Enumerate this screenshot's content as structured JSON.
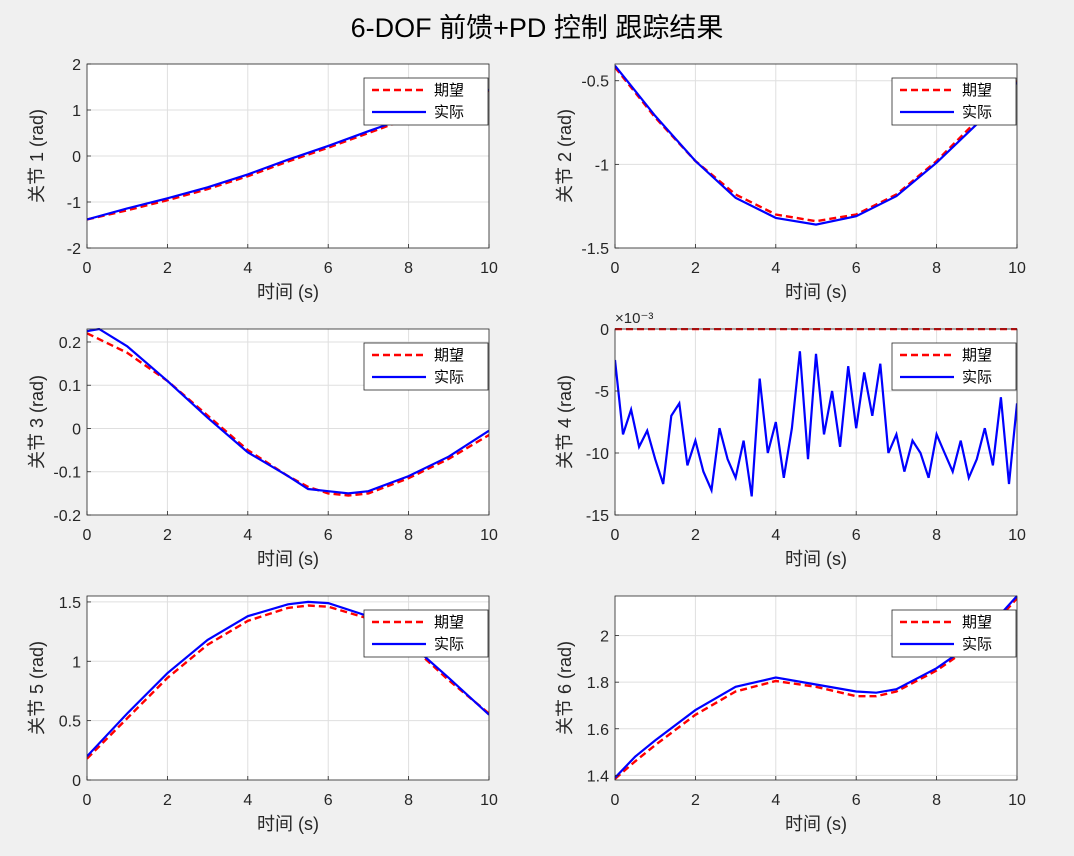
{
  "figure_title": "6-DOF 前馈+PD 控制 跟踪结果",
  "colors": {
    "desired": "#ff0000",
    "actual": "#0000ff",
    "axes_bg": "#ffffff",
    "figure_bg": "#f0f0f0",
    "grid": "#dfdfdf"
  },
  "chart_data": [
    {
      "type": "line",
      "ylabel": "关节 1 (rad)",
      "xlabel": "时间 (s)",
      "xlim": [
        0,
        10
      ],
      "ylim": [
        -2,
        2
      ],
      "xticks": [
        0,
        2,
        4,
        6,
        8,
        10
      ],
      "yticks": [
        -2,
        -1,
        0,
        1,
        2
      ],
      "ytick_labels": [
        "-2",
        "-1",
        "0",
        "1",
        "2"
      ],
      "grid": true,
      "legend": "top-right",
      "series": [
        {
          "name": "期望",
          "style": "dashed",
          "x": [
            0,
            1,
            2,
            3,
            4,
            5,
            6,
            7,
            8,
            9,
            10
          ],
          "y": [
            -1.38,
            -1.18,
            -0.96,
            -0.72,
            -0.44,
            -0.12,
            0.18,
            0.5,
            0.82,
            1.15,
            1.42
          ]
        },
        {
          "name": "实际",
          "style": "solid",
          "x": [
            0,
            1,
            2,
            3,
            4,
            5,
            6,
            7,
            8,
            9,
            10
          ],
          "y": [
            -1.38,
            -1.14,
            -0.92,
            -0.68,
            -0.4,
            -0.08,
            0.22,
            0.54,
            0.85,
            1.18,
            1.44
          ]
        }
      ]
    },
    {
      "type": "line",
      "ylabel": "关节 2 (rad)",
      "xlabel": "时间 (s)",
      "xlim": [
        0,
        10
      ],
      "ylim": [
        -1.5,
        -0.4
      ],
      "xticks": [
        0,
        2,
        4,
        6,
        8,
        10
      ],
      "yticks": [
        -1.5,
        -1,
        -0.5
      ],
      "ytick_labels": [
        "-1.5",
        "-1",
        "-0.5"
      ],
      "grid": true,
      "legend": "top-right",
      "series": [
        {
          "name": "期望",
          "style": "dashed",
          "x": [
            0,
            1,
            2,
            3,
            4,
            5,
            6,
            7,
            8,
            9,
            10
          ],
          "y": [
            -0.42,
            -0.72,
            -0.98,
            -1.18,
            -1.3,
            -1.34,
            -1.3,
            -1.18,
            -0.98,
            -0.74,
            -0.5
          ]
        },
        {
          "name": "实际",
          "style": "solid",
          "x": [
            0,
            1,
            2,
            3,
            4,
            5,
            6,
            7,
            8,
            9,
            10
          ],
          "y": [
            -0.41,
            -0.71,
            -0.98,
            -1.2,
            -1.32,
            -1.36,
            -1.31,
            -1.19,
            -0.99,
            -0.76,
            -0.51
          ]
        }
      ]
    },
    {
      "type": "line",
      "ylabel": "关节 3 (rad)",
      "xlabel": "时间 (s)",
      "xlim": [
        0,
        10
      ],
      "ylim": [
        -0.2,
        0.23
      ],
      "xticks": [
        0,
        2,
        4,
        6,
        8,
        10
      ],
      "yticks": [
        -0.2,
        -0.1,
        0,
        0.1,
        0.2
      ],
      "ytick_labels": [
        "-0.2",
        "-0.1",
        "0",
        "0.1",
        "0.2"
      ],
      "grid": true,
      "legend": "top-right",
      "series": [
        {
          "name": "期望",
          "style": "dashed",
          "x": [
            0,
            1,
            2,
            3,
            4,
            5,
            5.5,
            6,
            6.5,
            7,
            8,
            9,
            10
          ],
          "y": [
            0.22,
            0.175,
            0.11,
            0.03,
            -0.05,
            -0.11,
            -0.135,
            -0.15,
            -0.155,
            -0.15,
            -0.115,
            -0.07,
            -0.015
          ]
        },
        {
          "name": "实际",
          "style": "solid",
          "x": [
            0,
            0.3,
            1,
            2,
            3,
            4,
            5,
            5.5,
            6,
            6.5,
            7,
            8,
            9,
            10
          ],
          "y": [
            0.225,
            0.23,
            0.19,
            0.11,
            0.025,
            -0.055,
            -0.11,
            -0.14,
            -0.145,
            -0.15,
            -0.145,
            -0.11,
            -0.065,
            -0.005
          ]
        }
      ]
    },
    {
      "type": "line",
      "ylabel": "关节 4 (rad)",
      "xlabel": "时间 (s)",
      "xlim": [
        0,
        10
      ],
      "ylim": [
        -15,
        0
      ],
      "y_exponent_label": "×10⁻³",
      "xticks": [
        0,
        2,
        4,
        6,
        8,
        10
      ],
      "yticks": [
        -15,
        -10,
        -5,
        0
      ],
      "ytick_labels": [
        "-15",
        "-10",
        "-5",
        "0"
      ],
      "grid": true,
      "legend": "top-right",
      "series": [
        {
          "name": "期望",
          "style": "dashed",
          "x": [
            0,
            10
          ],
          "y": [
            0,
            0
          ]
        },
        {
          "name": "实际",
          "style": "solid",
          "x": [
            0,
            0.2,
            0.4,
            0.6,
            0.8,
            1.0,
            1.2,
            1.4,
            1.6,
            1.8,
            2.0,
            2.2,
            2.4,
            2.6,
            2.8,
            3.0,
            3.2,
            3.4,
            3.6,
            3.8,
            4.0,
            4.2,
            4.4,
            4.6,
            4.8,
            5.0,
            5.2,
            5.4,
            5.6,
            5.8,
            6.0,
            6.2,
            6.4,
            6.6,
            6.8,
            7.0,
            7.2,
            7.4,
            7.6,
            7.8,
            8.0,
            8.2,
            8.4,
            8.6,
            8.8,
            9.0,
            9.2,
            9.4,
            9.6,
            9.8,
            10.0
          ],
          "y": [
            -2.5,
            -8.5,
            -6.5,
            -9.5,
            -8.2,
            -10.5,
            -12.5,
            -7.0,
            -6.0,
            -11.0,
            -9.0,
            -11.5,
            -13.0,
            -8.0,
            -10.5,
            -12.0,
            -9.0,
            -13.5,
            -4.0,
            -10.0,
            -7.5,
            -12.0,
            -8.0,
            -1.8,
            -10.5,
            -2.0,
            -8.5,
            -5.0,
            -9.5,
            -3.0,
            -8.0,
            -3.5,
            -7.0,
            -2.8,
            -10.0,
            -8.5,
            -11.5,
            -9.0,
            -10.0,
            -12.0,
            -8.5,
            -10.0,
            -11.5,
            -9.0,
            -12.0,
            -10.5,
            -8.0,
            -11.0,
            -5.5,
            -12.5,
            -6.0
          ]
        }
      ]
    },
    {
      "type": "line",
      "ylabel": "关节 5 (rad)",
      "xlabel": "时间 (s)",
      "xlim": [
        0,
        10
      ],
      "ylim": [
        0,
        1.55
      ],
      "xticks": [
        0,
        2,
        4,
        6,
        8,
        10
      ],
      "yticks": [
        0,
        0.5,
        1,
        1.5
      ],
      "ytick_labels": [
        "0",
        "0.5",
        "1",
        "1.5"
      ],
      "grid": true,
      "legend": "top-right",
      "series": [
        {
          "name": "期望",
          "style": "dashed",
          "x": [
            0,
            1,
            2,
            3,
            4,
            5,
            5.5,
            6,
            7,
            8,
            9,
            10
          ],
          "y": [
            0.18,
            0.52,
            0.86,
            1.14,
            1.34,
            1.45,
            1.47,
            1.46,
            1.36,
            1.15,
            0.84,
            0.56
          ]
        },
        {
          "name": "实际",
          "style": "solid",
          "x": [
            0,
            1,
            2,
            3,
            4,
            5,
            5.5,
            6,
            7,
            8,
            9,
            10
          ],
          "y": [
            0.2,
            0.56,
            0.9,
            1.18,
            1.38,
            1.48,
            1.5,
            1.49,
            1.38,
            1.16,
            0.86,
            0.55
          ]
        }
      ]
    },
    {
      "type": "line",
      "ylabel": "关节 6 (rad)",
      "xlabel": "时间 (s)",
      "xlim": [
        0,
        10
      ],
      "ylim": [
        1.38,
        2.17
      ],
      "xticks": [
        0,
        2,
        4,
        6,
        8,
        10
      ],
      "yticks": [
        1.4,
        1.6,
        1.8,
        2.0
      ],
      "ytick_labels": [
        "1.4",
        "1.6",
        "1.8",
        "2"
      ],
      "grid": true,
      "legend": "top-right",
      "series": [
        {
          "name": "期望",
          "style": "dashed",
          "x": [
            0,
            0.5,
            1,
            2,
            3,
            4,
            5,
            6,
            6.5,
            7,
            8,
            9,
            10
          ],
          "y": [
            1.385,
            1.46,
            1.53,
            1.66,
            1.76,
            1.805,
            1.78,
            1.74,
            1.74,
            1.76,
            1.85,
            1.97,
            2.16
          ]
        },
        {
          "name": "实际",
          "style": "solid",
          "x": [
            0,
            0.5,
            1,
            2,
            3,
            4,
            5,
            6,
            6.5,
            7,
            8,
            9,
            10
          ],
          "y": [
            1.39,
            1.48,
            1.55,
            1.68,
            1.78,
            1.82,
            1.79,
            1.76,
            1.755,
            1.77,
            1.86,
            1.98,
            2.17
          ]
        }
      ]
    }
  ]
}
